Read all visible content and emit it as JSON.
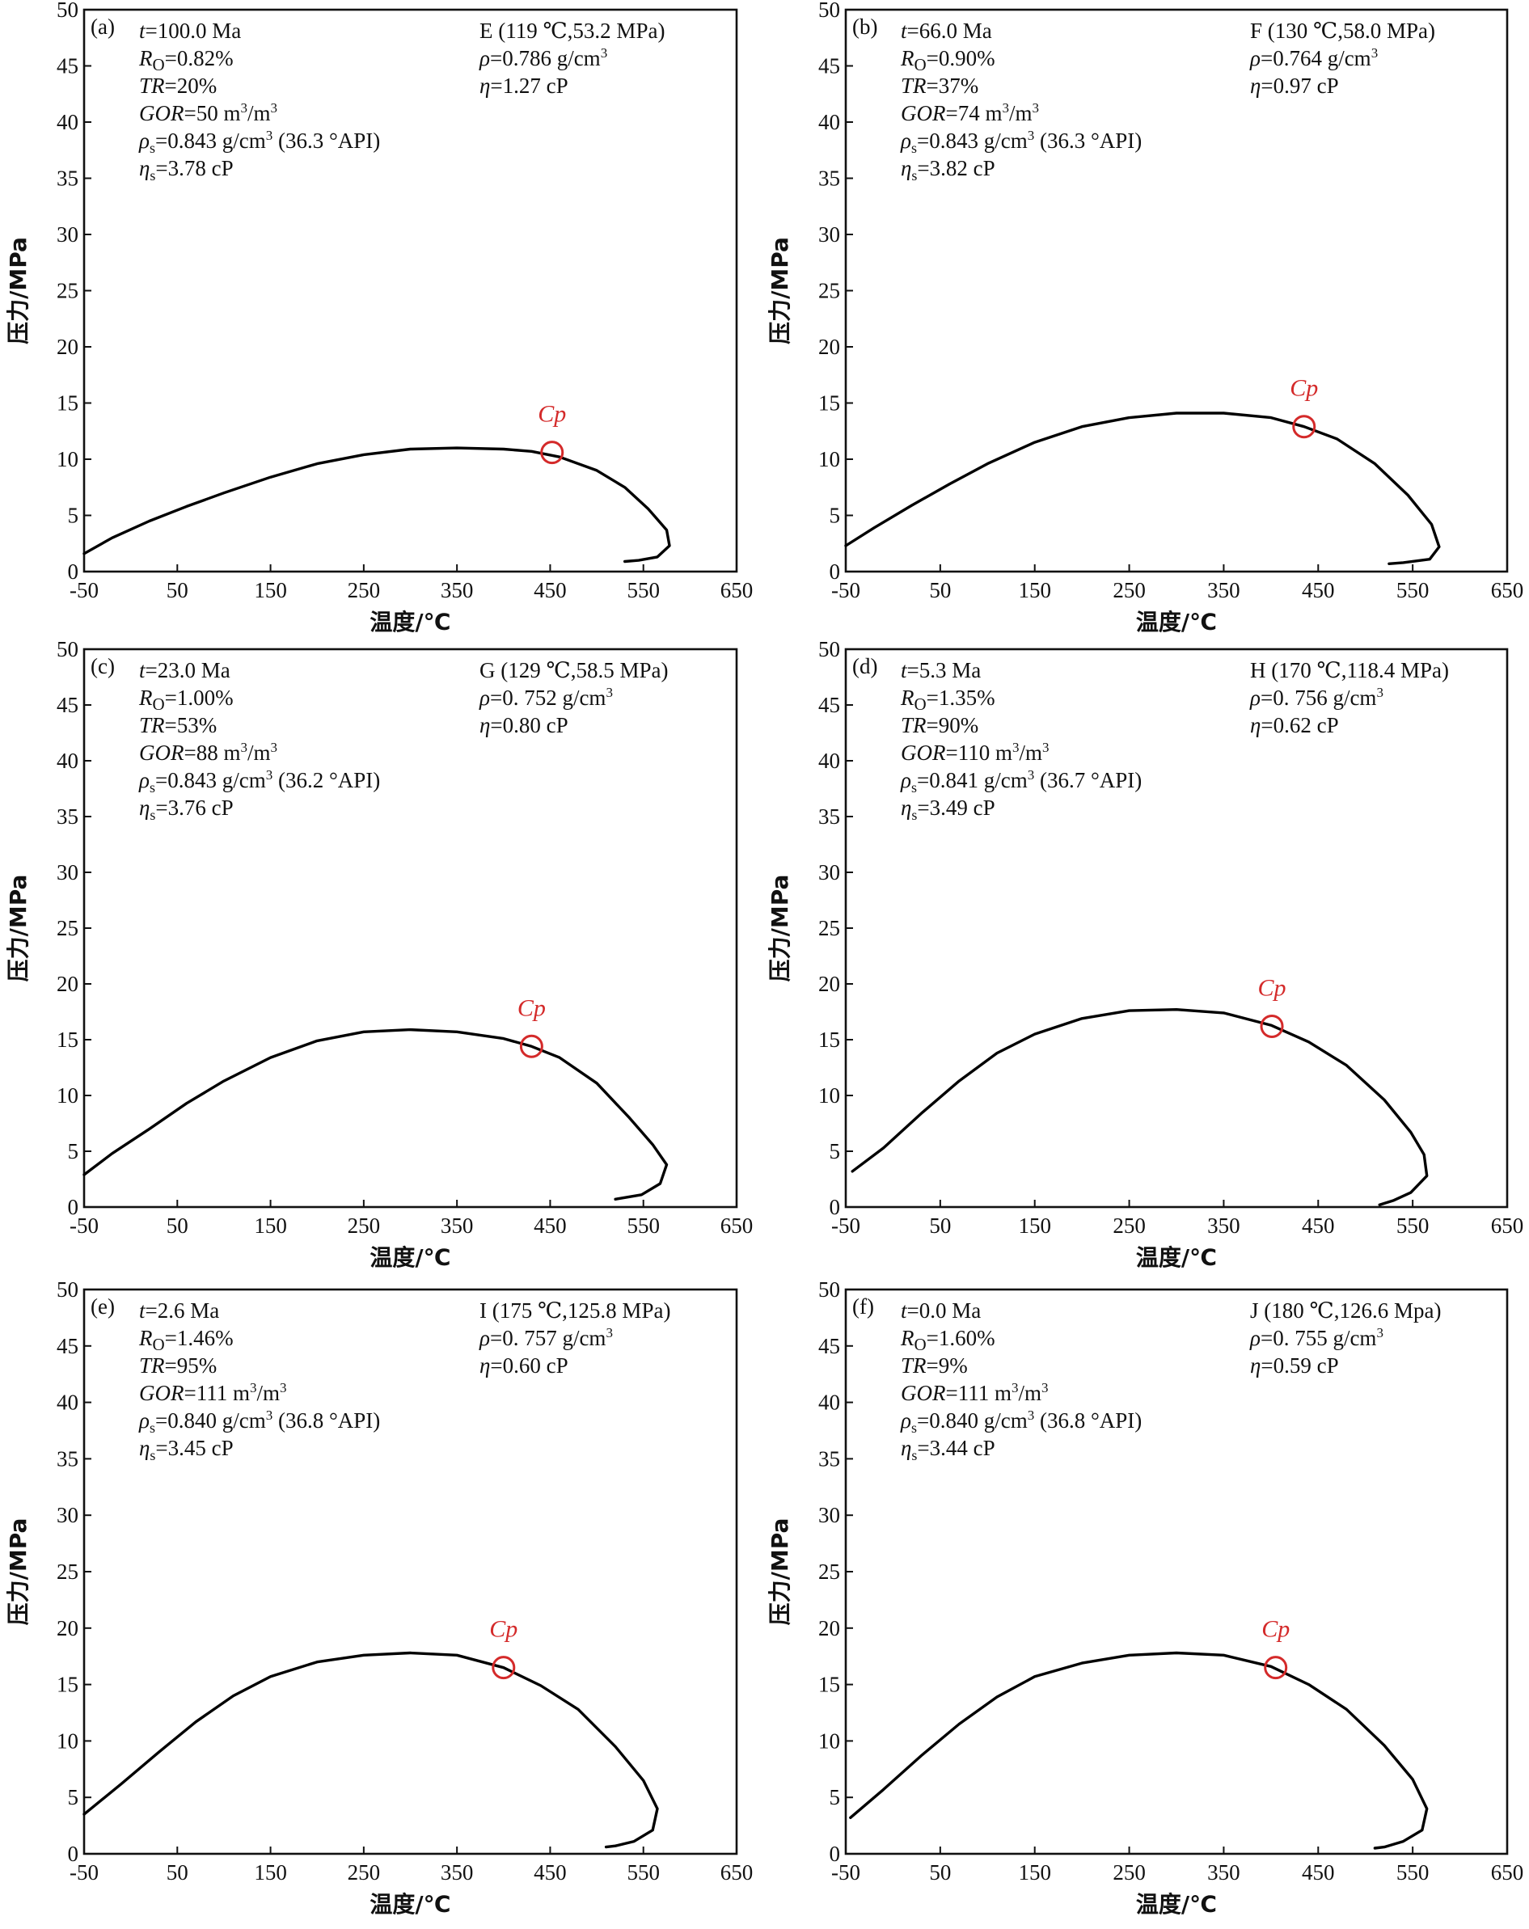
{
  "colors": {
    "axis": "#111111",
    "envelope": "#000000",
    "critical_point": "#d42a2a"
  },
  "chart_data": [
    {
      "type": "line",
      "panel": "(a)",
      "xlabel": "温度/℃",
      "ylabel": "压力/MPa",
      "xlim": [
        -50,
        650
      ],
      "ylim": [
        0,
        50
      ],
      "xticks": [
        "-50",
        "50",
        "150",
        "250",
        "350",
        "450",
        "550",
        "650"
      ],
      "yticks": [
        "0",
        "5",
        "10",
        "15",
        "20",
        "25",
        "30",
        "35",
        "40",
        "45",
        "50"
      ],
      "grid": false,
      "series": [
        {
          "points": [
            [
              -50,
              1.6
            ],
            [
              -20,
              3.0
            ],
            [
              20,
              4.5
            ],
            [
              60,
              5.8
            ],
            [
              100,
              7.0
            ],
            [
              150,
              8.4
            ],
            [
              200,
              9.6
            ],
            [
              250,
              10.4
            ],
            [
              300,
              10.9
            ],
            [
              350,
              11.0
            ],
            [
              400,
              10.9
            ],
            [
              430,
              10.7
            ],
            [
              460,
              10.2
            ],
            [
              500,
              9.0
            ],
            [
              530,
              7.5
            ],
            [
              555,
              5.6
            ],
            [
              575,
              3.7
            ],
            [
              578,
              2.3
            ],
            [
              565,
              1.3
            ],
            [
              545,
              1.0
            ],
            [
              530,
              0.9
            ]
          ]
        }
      ],
      "critical_point": {
        "label": "Cp",
        "x": 452,
        "y": 10.6
      },
      "annotations": {
        "t": "t=100.0 Ma",
        "ro": "RO=0.82%",
        "tr": "TR=20%",
        "gor": "GOR=50 m3/m3",
        "rho_s": "ρs=0.843 g/cm3 (36.3 °API)",
        "eta_s": "ηs=3.78 cP",
        "state": "E (119 ℃,53.2 MPa)",
        "rho": "ρ=0.786 g/cm3",
        "eta": "η=1.27 cP"
      }
    },
    {
      "type": "line",
      "panel": "(b)",
      "xlabel": "温度/℃",
      "ylabel": "压力/MPa",
      "xlim": [
        -50,
        650
      ],
      "ylim": [
        0,
        50
      ],
      "xticks": [
        "-50",
        "50",
        "150",
        "250",
        "350",
        "450",
        "550",
        "650"
      ],
      "yticks": [
        "0",
        "5",
        "10",
        "15",
        "20",
        "25",
        "30",
        "35",
        "40",
        "45",
        "50"
      ],
      "grid": false,
      "series": [
        {
          "points": [
            [
              -50,
              2.3
            ],
            [
              -20,
              3.9
            ],
            [
              20,
              5.9
            ],
            [
              60,
              7.8
            ],
            [
              100,
              9.6
            ],
            [
              150,
              11.5
            ],
            [
              200,
              12.9
            ],
            [
              250,
              13.7
            ],
            [
              300,
              14.1
            ],
            [
              350,
              14.1
            ],
            [
              400,
              13.7
            ],
            [
              435,
              12.9
            ],
            [
              470,
              11.8
            ],
            [
              510,
              9.6
            ],
            [
              545,
              6.8
            ],
            [
              570,
              4.2
            ],
            [
              578,
              2.2
            ],
            [
              568,
              1.1
            ],
            [
              540,
              0.8
            ],
            [
              525,
              0.7
            ]
          ]
        }
      ],
      "critical_point": {
        "label": "Cp",
        "x": 435,
        "y": 12.9
      },
      "annotations": {
        "t": "t=66.0 Ma",
        "ro": "RO=0.90%",
        "tr": "TR=37%",
        "gor": "GOR=74 m3/m3",
        "rho_s": "ρs=0.843 g/cm3 (36.3 °API)",
        "eta_s": "ηs=3.82 cP",
        "state": "F (130 ℃,58.0 MPa)",
        "rho": "ρ=0.764 g/cm3",
        "eta": "η=0.97 cP"
      }
    },
    {
      "type": "line",
      "panel": "(c)",
      "xlabel": "温度/℃",
      "ylabel": "压力/MPa",
      "xlim": [
        -50,
        650
      ],
      "ylim": [
        0,
        50
      ],
      "xticks": [
        "-50",
        "50",
        "150",
        "250",
        "350",
        "450",
        "550",
        "650"
      ],
      "yticks": [
        "0",
        "5",
        "10",
        "15",
        "20",
        "25",
        "30",
        "35",
        "40",
        "45",
        "50"
      ],
      "grid": false,
      "series": [
        {
          "points": [
            [
              -50,
              2.9
            ],
            [
              -20,
              4.8
            ],
            [
              20,
              7.0
            ],
            [
              60,
              9.3
            ],
            [
              100,
              11.3
            ],
            [
              150,
              13.4
            ],
            [
              200,
              14.9
            ],
            [
              250,
              15.7
            ],
            [
              300,
              15.9
            ],
            [
              350,
              15.7
            ],
            [
              400,
              15.1
            ],
            [
              430,
              14.4
            ],
            [
              460,
              13.4
            ],
            [
              500,
              11.1
            ],
            [
              535,
              8.0
            ],
            [
              560,
              5.6
            ],
            [
              575,
              3.8
            ],
            [
              568,
              2.1
            ],
            [
              548,
              1.1
            ],
            [
              520,
              0.7
            ]
          ]
        }
      ],
      "critical_point": {
        "label": "Cp",
        "x": 430,
        "y": 14.4
      },
      "annotations": {
        "t": "t=23.0 Ma",
        "ro": "RO=1.00%",
        "tr": "TR=53%",
        "gor": "GOR=88 m3/m3",
        "rho_s": "ρs=0.843 g/cm3 (36.2 °API)",
        "eta_s": "ηs=3.76 cP",
        "state": "G (129 ℃,58.5 MPa)",
        "rho": "ρ=0. 752 g/cm3",
        "eta": "η=0.80 cP"
      }
    },
    {
      "type": "line",
      "panel": "(d)",
      "xlabel": "温度/℃",
      "ylabel": "压力/MPa",
      "xlim": [
        -50,
        650
      ],
      "ylim": [
        0,
        50
      ],
      "xticks": [
        "-50",
        "50",
        "150",
        "250",
        "350",
        "450",
        "550",
        "650"
      ],
      "yticks": [
        "0",
        "5",
        "10",
        "15",
        "20",
        "25",
        "30",
        "35",
        "40",
        "45",
        "50"
      ],
      "grid": false,
      "series": [
        {
          "points": [
            [
              -43,
              3.2
            ],
            [
              -10,
              5.3
            ],
            [
              30,
              8.4
            ],
            [
              70,
              11.3
            ],
            [
              110,
              13.8
            ],
            [
              150,
              15.5
            ],
            [
              200,
              16.9
            ],
            [
              250,
              17.6
            ],
            [
              300,
              17.7
            ],
            [
              350,
              17.4
            ],
            [
              400,
              16.3
            ],
            [
              440,
              14.8
            ],
            [
              480,
              12.7
            ],
            [
              520,
              9.6
            ],
            [
              548,
              6.7
            ],
            [
              562,
              4.7
            ],
            [
              565,
              2.8
            ],
            [
              548,
              1.3
            ],
            [
              530,
              0.6
            ],
            [
              515,
              0.2
            ]
          ]
        }
      ],
      "critical_point": {
        "label": "Cp",
        "x": 401,
        "y": 16.2
      },
      "annotations": {
        "t": "t=5.3 Ma",
        "ro": "RO=1.35%",
        "tr": "TR=90%",
        "gor": "GOR=110 m3/m3",
        "rho_s": "ρs=0.841 g/cm3 (36.7 °API)",
        "eta_s": "ηs=3.49 cP",
        "state": "H (170 ℃,118.4 MPa)",
        "rho": "ρ=0. 756 g/cm3",
        "eta": "η=0.62 cP"
      }
    },
    {
      "type": "line",
      "panel": "(e)",
      "xlabel": "温度/℃",
      "ylabel": "压力/MPa",
      "xlim": [
        -50,
        650
      ],
      "ylim": [
        0,
        50
      ],
      "xticks": [
        "-50",
        "50",
        "150",
        "250",
        "350",
        "450",
        "550",
        "650"
      ],
      "yticks": [
        "0",
        "5",
        "10",
        "15",
        "20",
        "25",
        "30",
        "35",
        "40",
        "45",
        "50"
      ],
      "grid": false,
      "series": [
        {
          "points": [
            [
              -50,
              3.5
            ],
            [
              -10,
              6.2
            ],
            [
              30,
              9.0
            ],
            [
              70,
              11.7
            ],
            [
              110,
              14.0
            ],
            [
              150,
              15.7
            ],
            [
              200,
              17.0
            ],
            [
              250,
              17.6
            ],
            [
              300,
              17.8
            ],
            [
              350,
              17.6
            ],
            [
              400,
              16.5
            ],
            [
              440,
              14.9
            ],
            [
              480,
              12.8
            ],
            [
              520,
              9.5
            ],
            [
              550,
              6.5
            ],
            [
              565,
              4.0
            ],
            [
              560,
              2.1
            ],
            [
              540,
              1.1
            ],
            [
              520,
              0.7
            ],
            [
              510,
              0.6
            ]
          ]
        }
      ],
      "critical_point": {
        "label": "Cp",
        "x": 400,
        "y": 16.5
      },
      "annotations": {
        "t": "t=2.6 Ma",
        "ro": "RO=1.46%",
        "tr": "TR=95%",
        "gor": "GOR=111 m3/m3",
        "rho_s": "ρs=0.840 g/cm3 (36.8 °API)",
        "eta_s": "ηs=3.45 cP",
        "state": "I (175 ℃,125.8 MPa)",
        "rho": "ρ=0. 757 g/cm3",
        "eta": "η=0.60 cP"
      }
    },
    {
      "type": "line",
      "panel": "(f)",
      "xlabel": "温度/℃",
      "ylabel": "压力/MPa",
      "xlim": [
        -50,
        650
      ],
      "ylim": [
        0,
        50
      ],
      "xticks": [
        "-50",
        "50",
        "150",
        "250",
        "350",
        "450",
        "550",
        "650"
      ],
      "yticks": [
        "0",
        "5",
        "10",
        "15",
        "20",
        "25",
        "30",
        "35",
        "40",
        "45",
        "50"
      ],
      "grid": false,
      "series": [
        {
          "points": [
            [
              -45,
              3.2
            ],
            [
              -10,
              5.7
            ],
            [
              30,
              8.7
            ],
            [
              70,
              11.5
            ],
            [
              110,
              13.9
            ],
            [
              150,
              15.7
            ],
            [
              200,
              16.9
            ],
            [
              250,
              17.6
            ],
            [
              300,
              17.8
            ],
            [
              350,
              17.6
            ],
            [
              400,
              16.6
            ],
            [
              440,
              15.0
            ],
            [
              480,
              12.8
            ],
            [
              520,
              9.6
            ],
            [
              550,
              6.6
            ],
            [
              565,
              4.0
            ],
            [
              560,
              2.1
            ],
            [
              540,
              1.1
            ],
            [
              520,
              0.6
            ],
            [
              510,
              0.5
            ]
          ]
        }
      ],
      "critical_point": {
        "label": "Cp",
        "x": 405,
        "y": 16.5
      },
      "annotations": {
        "t": "t=0.0 Ma",
        "ro": "RO=1.60%",
        "tr": "TR=9%",
        "gor": "GOR=111 m3/m3",
        "rho_s": "ρs=0.840 g/cm3 (36.8 °API)",
        "eta_s": "ηs=3.44 cP",
        "state": "J (180 ℃,126.6 Mpa)",
        "rho": "ρ=0. 755 g/cm3",
        "eta": "η=0.59 cP"
      }
    }
  ]
}
